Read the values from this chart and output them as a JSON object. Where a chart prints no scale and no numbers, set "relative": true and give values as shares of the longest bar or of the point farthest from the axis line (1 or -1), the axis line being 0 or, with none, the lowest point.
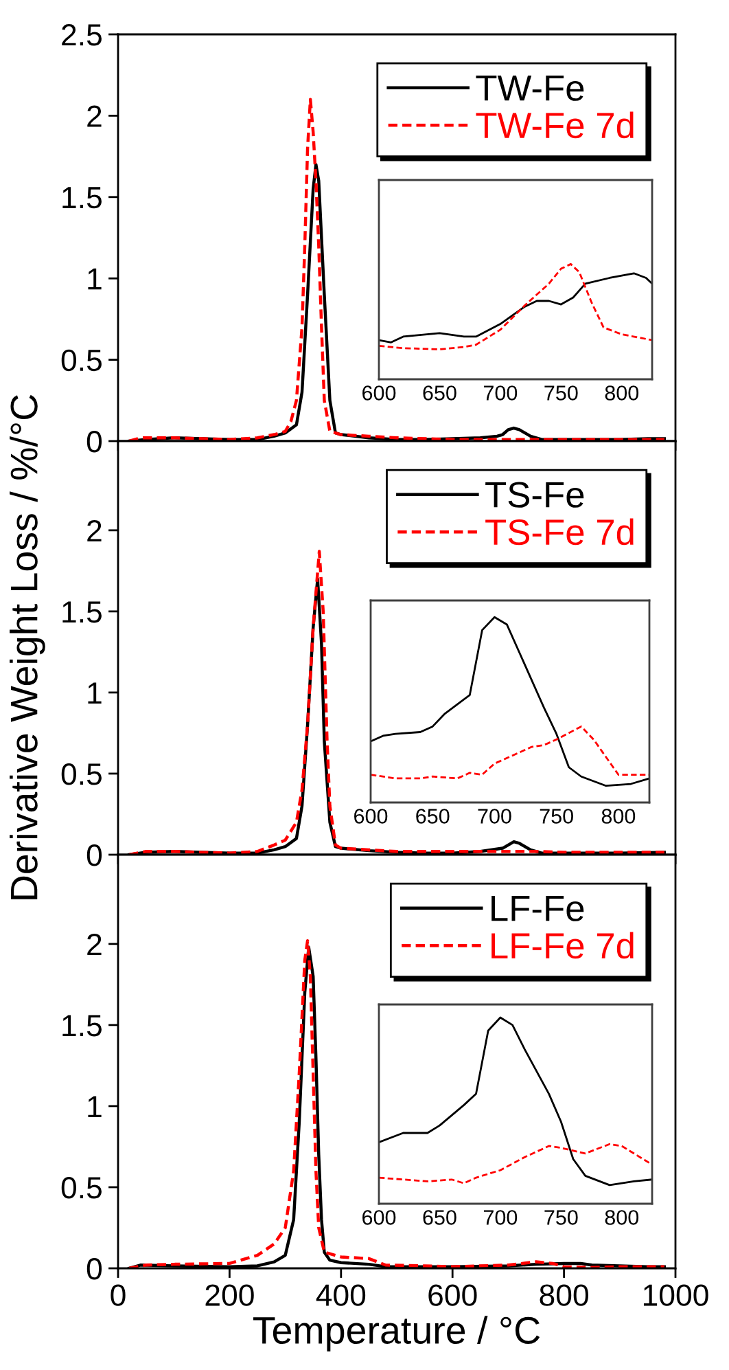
{
  "chart_data": [
    {
      "type": "line",
      "xlim": [
        0,
        1000
      ],
      "xticks": [
        0,
        200,
        400,
        600,
        800,
        1000
      ],
      "ylim": [
        0,
        2.5
      ],
      "yticks": [
        0,
        0.5,
        1,
        1.5,
        2,
        2.5
      ],
      "tick_labels": "y",
      "legend": "top right",
      "series": [
        {
          "name": "TW-Fe",
          "color": "#000000",
          "line_style": "solid",
          "x": [
            20,
            50,
            100,
            150,
            200,
            250,
            280,
            300,
            320,
            330,
            340,
            350,
            355,
            360,
            370,
            380,
            390,
            400,
            450,
            500,
            550,
            600,
            650,
            680,
            690,
            700,
            710,
            720,
            740,
            760,
            800,
            900,
            950,
            980
          ],
          "values": [
            0,
            0.01,
            0.02,
            0.015,
            0.01,
            0.01,
            0.03,
            0.05,
            0.1,
            0.3,
            0.9,
            1.55,
            1.7,
            1.6,
            0.9,
            0.25,
            0.05,
            0.04,
            0.02,
            0.01,
            0.01,
            0.015,
            0.02,
            0.03,
            0.04,
            0.07,
            0.08,
            0.07,
            0.03,
            0.01,
            0.01,
            0.01,
            0.015,
            0.015
          ]
        },
        {
          "name": "TW-Fe 7d",
          "color": "#ff0000",
          "line_style": "dashed",
          "x": [
            20,
            40,
            100,
            200,
            250,
            280,
            300,
            310,
            320,
            330,
            335,
            340,
            345,
            350,
            355,
            360,
            365,
            370,
            380,
            400,
            450,
            500,
            600,
            700,
            750,
            800,
            900,
            980
          ],
          "values": [
            0,
            0.02,
            0.02,
            0.01,
            0.02,
            0.04,
            0.06,
            0.12,
            0.25,
            0.7,
            1.2,
            1.8,
            2.1,
            1.9,
            1.6,
            1.2,
            0.7,
            0.25,
            0.06,
            0.04,
            0.03,
            0.02,
            0.01,
            0.01,
            0.01,
            0.01,
            0.01,
            0.01
          ]
        }
      ]
    },
    {
      "type": "line",
      "relative": true,
      "xlim": [
        600,
        825
      ],
      "xticks": [
        600,
        650,
        700,
        750,
        800
      ],
      "tick_labels": "x",
      "series": [
        {
          "color": "#000000",
          "line_style": "solid",
          "x": [
            600,
            610,
            620,
            650,
            670,
            680,
            700,
            720,
            730,
            740,
            750,
            760,
            770,
            790,
            810,
            820,
            825
          ],
          "values": [
            0.34,
            0.32,
            0.37,
            0.4,
            0.37,
            0.37,
            0.48,
            0.63,
            0.68,
            0.68,
            0.65,
            0.71,
            0.83,
            0.88,
            0.92,
            0.88,
            0.83
          ]
        },
        {
          "color": "#ff0000",
          "line_style": "dashed",
          "x": [
            600,
            620,
            650,
            670,
            680,
            700,
            720,
            740,
            750,
            758,
            765,
            775,
            785,
            800,
            825
          ],
          "values": [
            0.29,
            0.27,
            0.26,
            0.28,
            0.3,
            0.43,
            0.64,
            0.83,
            0.96,
            1.0,
            0.93,
            0.67,
            0.45,
            0.39,
            0.34
          ]
        }
      ]
    },
    {
      "type": "line",
      "xlim": [
        0,
        1000
      ],
      "xticks": [
        0,
        200,
        400,
        600,
        800,
        1000
      ],
      "ylim": [
        0,
        2.55
      ],
      "yticks": [
        0,
        0.5,
        1,
        1.5,
        2
      ],
      "tick_labels": "y",
      "ylabel": "Derivative Weight Loss / %/°C",
      "legend": "top right",
      "series": [
        {
          "name": "TS-Fe",
          "color": "#000000",
          "line_style": "solid",
          "x": [
            20,
            50,
            100,
            150,
            200,
            250,
            280,
            300,
            320,
            330,
            340,
            350,
            358,
            365,
            370,
            380,
            390,
            400,
            450,
            500,
            550,
            600,
            650,
            690,
            700,
            710,
            720,
            740,
            760,
            800,
            900,
            980
          ],
          "values": [
            0,
            0.015,
            0.02,
            0.015,
            0.01,
            0.01,
            0.03,
            0.05,
            0.1,
            0.3,
            0.8,
            1.4,
            1.7,
            1.3,
            0.7,
            0.2,
            0.05,
            0.04,
            0.025,
            0.015,
            0.01,
            0.01,
            0.02,
            0.04,
            0.06,
            0.08,
            0.07,
            0.03,
            0.01,
            0.01,
            0.01,
            0.015
          ]
        },
        {
          "name": "TS-Fe 7d",
          "color": "#ff0000",
          "line_style": "dashed",
          "x": [
            20,
            50,
            100,
            200,
            250,
            280,
            300,
            320,
            330,
            340,
            350,
            361,
            368,
            375,
            380,
            390,
            400,
            450,
            500,
            600,
            700,
            750,
            800,
            900,
            980
          ],
          "values": [
            0,
            0.02,
            0.02,
            0.01,
            0.02,
            0.06,
            0.09,
            0.2,
            0.4,
            0.8,
            1.4,
            1.87,
            1.5,
            0.7,
            0.3,
            0.06,
            0.04,
            0.03,
            0.02,
            0.02,
            0.02,
            0.02,
            0.015,
            0.015,
            0.015
          ]
        }
      ]
    },
    {
      "type": "line",
      "relative": true,
      "xlim": [
        600,
        825
      ],
      "xticks": [
        600,
        650,
        700,
        750,
        800
      ],
      "tick_labels": "x",
      "series": [
        {
          "color": "#000000",
          "line_style": "solid",
          "x": [
            600,
            610,
            620,
            640,
            650,
            660,
            680,
            690,
            700,
            710,
            720,
            740,
            750,
            760,
            770,
            790,
            810,
            825
          ],
          "values": [
            0.33,
            0.36,
            0.37,
            0.38,
            0.41,
            0.48,
            0.58,
            0.93,
            1.0,
            0.96,
            0.81,
            0.51,
            0.37,
            0.19,
            0.14,
            0.09,
            0.1,
            0.13
          ]
        },
        {
          "color": "#ff0000",
          "line_style": "dashed",
          "x": [
            600,
            620,
            640,
            650,
            670,
            680,
            690,
            700,
            710,
            730,
            740,
            750,
            770,
            780,
            800,
            825
          ],
          "values": [
            0.15,
            0.13,
            0.13,
            0.14,
            0.13,
            0.16,
            0.15,
            0.21,
            0.24,
            0.3,
            0.31,
            0.34,
            0.41,
            0.34,
            0.15,
            0.15
          ]
        }
      ]
    },
    {
      "type": "line",
      "xlim": [
        0,
        1000
      ],
      "xticks": [
        0,
        200,
        400,
        600,
        800,
        1000
      ],
      "ylim": [
        0,
        2.55
      ],
      "yticks": [
        0,
        0.5,
        1,
        1.5,
        2
      ],
      "xlabel": "Temperature / °C",
      "legend": "top right",
      "series": [
        {
          "name": "LF-Fe",
          "color": "#000000",
          "line_style": "solid",
          "x": [
            20,
            40,
            100,
            200,
            250,
            280,
            300,
            315,
            325,
            335,
            342,
            350,
            355,
            360,
            365,
            370,
            380,
            400,
            450,
            480,
            600,
            700,
            750,
            800,
            830,
            850,
            900,
            950,
            980
          ],
          "values": [
            0,
            0.02,
            0.015,
            0.01,
            0.015,
            0.04,
            0.08,
            0.3,
            0.9,
            1.7,
            1.98,
            1.8,
            1.3,
            0.7,
            0.3,
            0.1,
            0.05,
            0.035,
            0.025,
            0.01,
            0.01,
            0.015,
            0.025,
            0.03,
            0.03,
            0.02,
            0.015,
            0.01,
            0.01
          ]
        },
        {
          "name": "LF-Fe 7d",
          "color": "#ff0000",
          "line_style": "dashed",
          "x": [
            20,
            50,
            100,
            200,
            250,
            280,
            300,
            315,
            325,
            335,
            340,
            345,
            350,
            355,
            360,
            370,
            400,
            450,
            480,
            550,
            600,
            700,
            750,
            780,
            800,
            850,
            900,
            980
          ],
          "values": [
            0,
            0.02,
            0.025,
            0.03,
            0.08,
            0.15,
            0.25,
            0.6,
            1.2,
            1.9,
            2.02,
            1.8,
            1.2,
            0.6,
            0.25,
            0.1,
            0.07,
            0.06,
            0.02,
            0.015,
            0.01,
            0.02,
            0.04,
            0.03,
            0.01,
            0.005,
            0.01,
            0.01
          ]
        }
      ]
    },
    {
      "type": "line",
      "relative": true,
      "xlim": [
        600,
        825
      ],
      "xticks": [
        600,
        650,
        700,
        750,
        800
      ],
      "tick_labels": "x",
      "series": [
        {
          "color": "#000000",
          "line_style": "solid",
          "x": [
            600,
            620,
            640,
            650,
            670,
            680,
            690,
            700,
            710,
            720,
            740,
            750,
            760,
            770,
            790,
            810,
            825
          ],
          "values": [
            0.33,
            0.38,
            0.38,
            0.42,
            0.53,
            0.59,
            0.93,
            1.0,
            0.96,
            0.83,
            0.59,
            0.44,
            0.24,
            0.15,
            0.1,
            0.12,
            0.13
          ]
        },
        {
          "color": "#ff0000",
          "line_style": "dashed",
          "x": [
            600,
            620,
            640,
            660,
            670,
            680,
            700,
            720,
            740,
            750,
            770,
            790,
            800,
            825
          ],
          "values": [
            0.14,
            0.13,
            0.12,
            0.13,
            0.11,
            0.14,
            0.18,
            0.25,
            0.31,
            0.3,
            0.27,
            0.32,
            0.31,
            0.21
          ]
        }
      ]
    }
  ]
}
